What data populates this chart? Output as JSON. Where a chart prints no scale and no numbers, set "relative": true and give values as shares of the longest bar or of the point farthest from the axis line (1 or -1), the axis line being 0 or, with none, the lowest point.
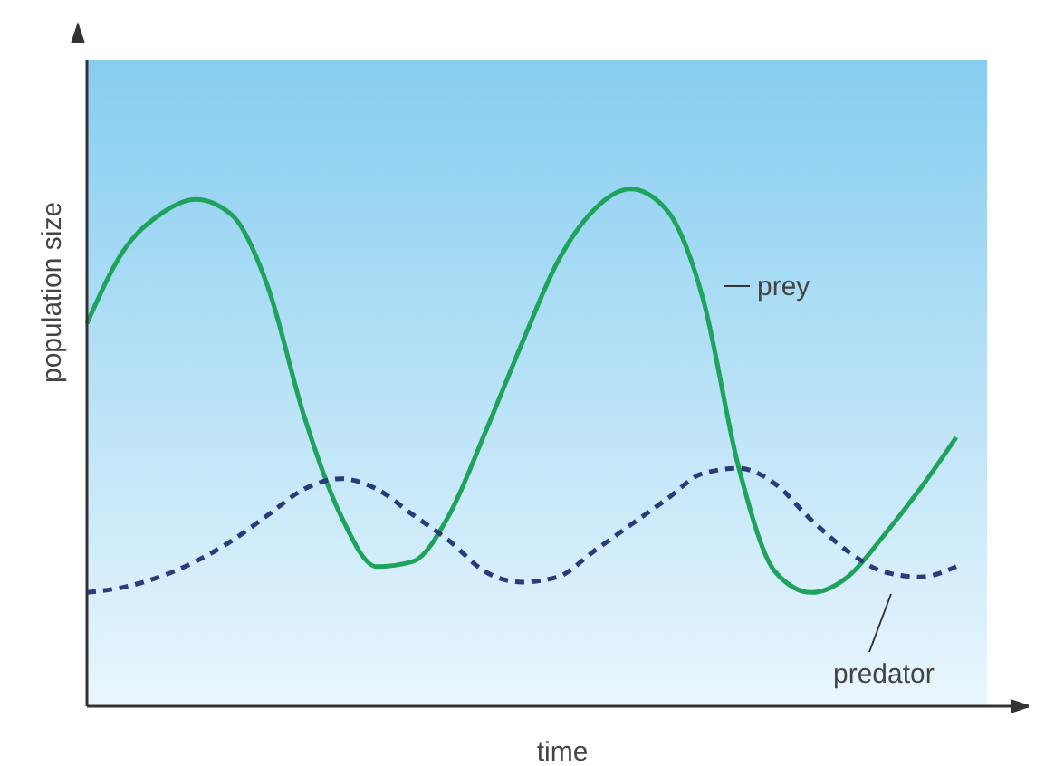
{
  "chart_data": {
    "type": "line",
    "relative": true,
    "xlabel": "time",
    "ylabel": "population size",
    "categories": [
      null,
      null,
      null,
      null,
      null,
      null,
      null,
      null,
      null,
      null,
      null,
      null,
      null,
      null,
      null,
      null,
      null,
      null,
      null,
      null,
      null,
      null,
      null,
      null,
      null
    ],
    "series": [
      {
        "name": "prey",
        "color": "#1fa35c",
        "line_style": "solid",
        "values": [
          0.74,
          0.88,
          0.95,
          0.98,
          0.95,
          0.81,
          0.56,
          0.37,
          0.27,
          0.28,
          0.37,
          0.53,
          0.7,
          0.86,
          0.96,
          1.0,
          0.96,
          0.79,
          0.46,
          0.26,
          0.22,
          0.25,
          0.33,
          0.42,
          0.52
        ]
      },
      {
        "name": "predator",
        "color": "#2b3a7a",
        "line_style": "dashed",
        "values": [
          0.22,
          0.23,
          0.25,
          0.28,
          0.32,
          0.37,
          0.42,
          0.44,
          0.42,
          0.37,
          0.32,
          0.26,
          0.24,
          0.25,
          0.3,
          0.35,
          0.4,
          0.45,
          0.46,
          0.43,
          0.36,
          0.3,
          0.26,
          0.25,
          0.27
        ]
      }
    ],
    "legend": false,
    "grid": false,
    "marker": "none"
  }
}
